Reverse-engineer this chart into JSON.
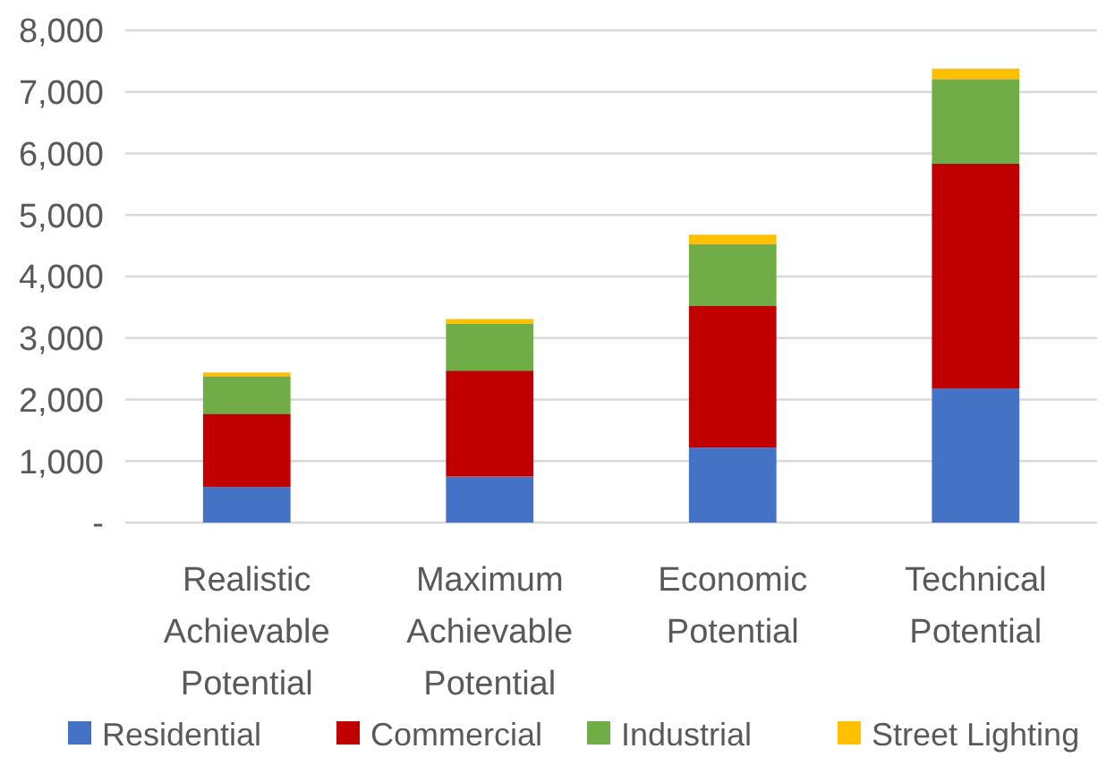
{
  "chart_data": {
    "type": "bar",
    "stacked": true,
    "categories": [
      "Realistic Achievable Potential",
      "Maximum Achievable Potential",
      "Economic Potential",
      "Technical Potential"
    ],
    "series": [
      {
        "name": "Residential",
        "color": "#4472c4",
        "values": [
          580,
          750,
          1220,
          2180
        ]
      },
      {
        "name": "Commercial",
        "color": "#c00000",
        "values": [
          1190,
          1720,
          2300,
          3660
        ]
      },
      {
        "name": "Industrial",
        "color": "#70ad47",
        "values": [
          610,
          760,
          1010,
          1370
        ]
      },
      {
        "name": "Street Lighting",
        "color": "#ffc000",
        "values": [
          60,
          80,
          150,
          170
        ]
      }
    ],
    "ylim": [
      0,
      8000
    ],
    "yticks": [
      {
        "value": 0,
        "label": "-"
      },
      {
        "value": 1000,
        "label": "1,000"
      },
      {
        "value": 2000,
        "label": "2,000"
      },
      {
        "value": 3000,
        "label": "3,000"
      },
      {
        "value": 4000,
        "label": "4,000"
      },
      {
        "value": 5000,
        "label": "5,000"
      },
      {
        "value": 6000,
        "label": "6,000"
      },
      {
        "value": 7000,
        "label": "7,000"
      },
      {
        "value": 8000,
        "label": "8,000"
      }
    ],
    "grid": "y",
    "legend": "bottom"
  }
}
